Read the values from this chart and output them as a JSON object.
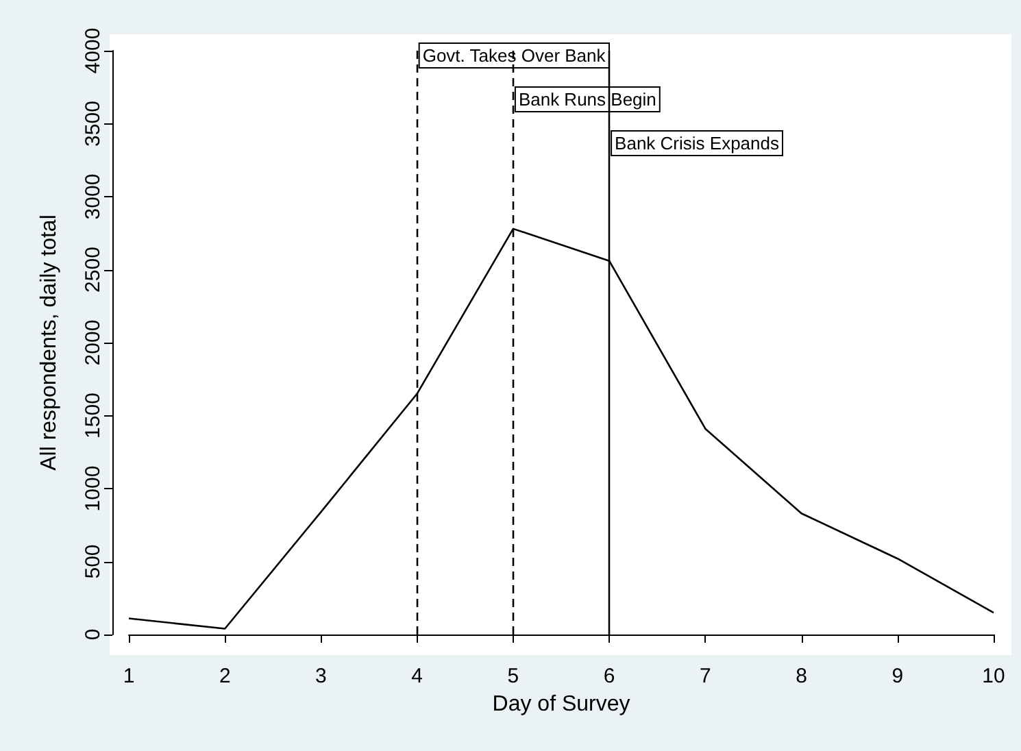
{
  "chart_data": {
    "type": "line",
    "xlabel": "Day of Survey",
    "ylabel": "All respondents, daily total",
    "x": [
      1,
      2,
      3,
      4,
      5,
      6,
      7,
      8,
      9,
      10
    ],
    "series": [
      {
        "color": "#000000",
        "values": [
          110,
          40,
          840,
          1650,
          2780,
          2560,
          1410,
          830,
          520,
          150
        ]
      }
    ],
    "xlim": [
      1,
      10
    ],
    "xticks": [
      1,
      2,
      3,
      4,
      5,
      6,
      7,
      8,
      9,
      10
    ],
    "ylim": [
      0,
      4000
    ],
    "yticks": [
      0,
      500,
      1000,
      1500,
      2000,
      2500,
      3000,
      3500,
      4000
    ],
    "ref_lines": [
      {
        "axis": "x",
        "value": 4,
        "label": "Govt. Takes Over Bank",
        "line_style": "dashed"
      },
      {
        "axis": "x",
        "value": 5,
        "label": "Bank Runs Begin",
        "line_style": "dashed"
      },
      {
        "axis": "x",
        "value": 6,
        "label": "Bank Crisis Expands",
        "line_style": "solid"
      }
    ],
    "grid": false,
    "marker": "none",
    "line_style": "solid"
  }
}
